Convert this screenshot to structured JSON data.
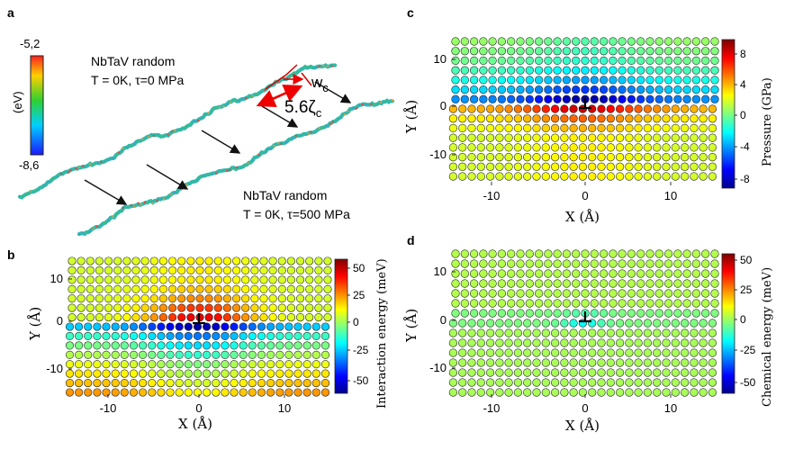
{
  "panel_a": {
    "label": "a",
    "colorbar": {
      "max": "-5,2",
      "min": "-8,6",
      "unit": "(eV)"
    },
    "top_caption": {
      "line1": "NbTaV random",
      "line2": "T = 0K, τ=0 MPa"
    },
    "bottom_caption": {
      "line1": "NbTaV random",
      "line2": "T = 0K, τ=500 MPa"
    },
    "width_label": {
      "base": "w",
      "sub": "c"
    },
    "zeta_label": {
      "base": "5.6ζ",
      "sub": "c"
    }
  },
  "panel_b": {
    "label": "b",
    "xlabel": "X (Å)",
    "ylabel": "Y (Å)",
    "xticks": [
      "-10",
      "0",
      "10"
    ],
    "yticks": [
      "10",
      "0",
      "-10"
    ],
    "colorbar_label": "Interaction energy (meV)",
    "colorbar_ticks": [
      "50",
      "25",
      "0",
      "-25",
      "-50"
    ]
  },
  "panel_c": {
    "label": "c",
    "xlabel": "X (Å)",
    "ylabel": "Y (Å)",
    "xticks": [
      "-10",
      "0",
      "10"
    ],
    "yticks": [
      "10",
      "0",
      "-10"
    ],
    "colorbar_label": "Pressure (GPa)",
    "colorbar_ticks": [
      "8",
      "4",
      "0",
      "-4",
      "-8"
    ]
  },
  "panel_d": {
    "label": "d",
    "xlabel": "X (Å)",
    "ylabel": "Y (Å)",
    "xticks": [
      "-10",
      "0",
      "10"
    ],
    "yticks": [
      "10",
      "0",
      "-10"
    ],
    "colorbar_label": "Chemical energy (meV)",
    "colorbar_ticks": [
      "50",
      "25",
      "0",
      "-25",
      "-50"
    ]
  },
  "chart_data": [
    {
      "type": "heatmap",
      "title": "b",
      "xlabel": "X (Å)",
      "ylabel": "Y (Å)",
      "xlim": [
        -14,
        14
      ],
      "ylim": [
        -15,
        15
      ],
      "clim": [
        -60,
        60
      ],
      "colorbar": "Interaction energy (meV)",
      "description_values": {
        "above_core_peak": 40,
        "below_core_min": -55,
        "far_field": 5
      }
    },
    {
      "type": "heatmap",
      "title": "c",
      "xlabel": "X (Å)",
      "ylabel": "Y (Å)",
      "xlim": [
        -14,
        14
      ],
      "ylim": [
        -15,
        15
      ],
      "clim": [
        -9,
        9
      ],
      "colorbar": "Pressure (GPa)",
      "description_values": {
        "above_core_min": -8,
        "below_core_peak": 6,
        "far_field": 0
      }
    },
    {
      "type": "heatmap",
      "title": "d",
      "xlabel": "X (Å)",
      "ylabel": "Y (Å)",
      "xlim": [
        -14,
        14
      ],
      "ylim": [
        -15,
        15
      ],
      "clim": [
        -60,
        60
      ],
      "colorbar": "Chemical energy (meV)",
      "description_values": {
        "core_row_min": -20,
        "far_field": 5
      }
    }
  ]
}
